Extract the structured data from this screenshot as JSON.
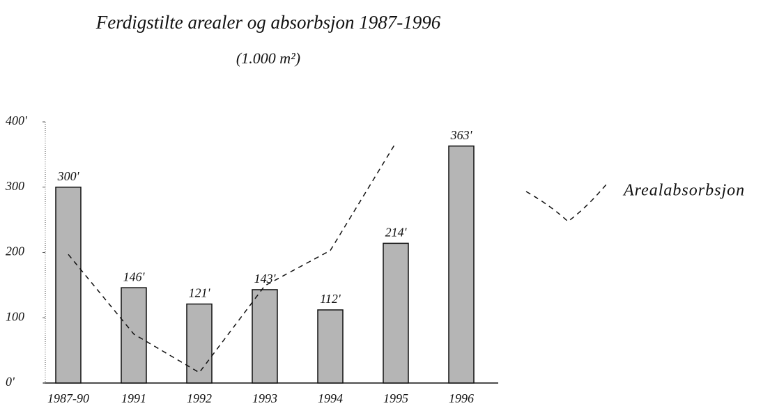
{
  "chart_data": {
    "type": "bar",
    "title": "Ferdigstilte arealer og absorbsjon 1987-1996",
    "subtitle": "(1.000 m²)",
    "categories": [
      "1987-90",
      "1991",
      "1992",
      "1993",
      "1994",
      "1995",
      "1996"
    ],
    "series": [
      {
        "type": "bar",
        "color": "#b5b5b5",
        "values": [
          300,
          146,
          121,
          143,
          112,
          214,
          363
        ],
        "value_labels": [
          "300'",
          "146'",
          "121'",
          "143'",
          "112'",
          "214'",
          "363'"
        ]
      },
      {
        "type": "line",
        "name": "Arealabsorbsjon",
        "color": "#111111",
        "dashed": true,
        "values": [
          197,
          75,
          16,
          149,
          203,
          368,
          null
        ]
      }
    ],
    "ylim": [
      0,
      400
    ],
    "yticks": [
      {
        "value": 0,
        "label": "0'"
      },
      100,
      200,
      300,
      {
        "value": 400,
        "label": "400'"
      }
    ],
    "legend": "right"
  }
}
